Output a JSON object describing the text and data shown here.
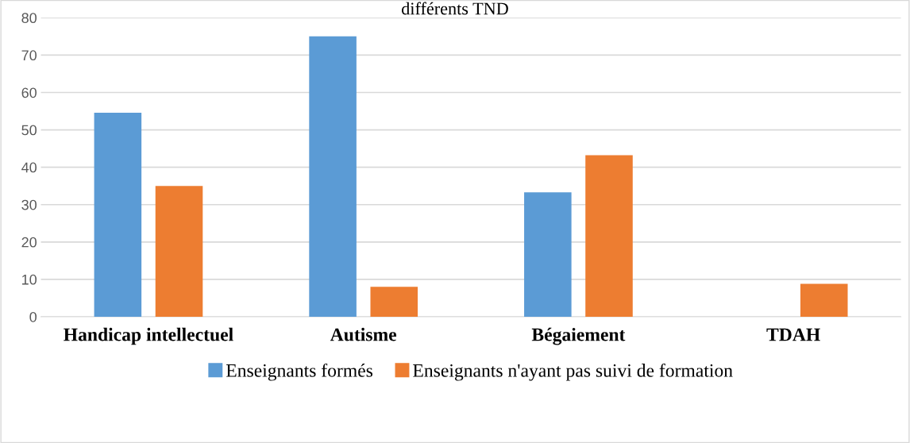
{
  "chart_data": {
    "type": "bar",
    "title": "différents TND",
    "categories": [
      "Handicap intellectuel",
      "Autisme",
      "Bégaiement",
      "TDAH"
    ],
    "series": [
      {
        "name": "Enseignants formés",
        "color": "#5b9bd5",
        "values": [
          54.6,
          75,
          33.3,
          0
        ]
      },
      {
        "name": "Enseignants n'ayant pas suivi de formation",
        "color": "#ed7d31",
        "values": [
          35,
          8,
          43.2,
          8.8
        ]
      }
    ],
    "ylim": [
      0,
      80
    ],
    "yticks": [
      0,
      10,
      20,
      30,
      40,
      50,
      60,
      70,
      80
    ],
    "grid": "y",
    "legend": "bottom"
  }
}
